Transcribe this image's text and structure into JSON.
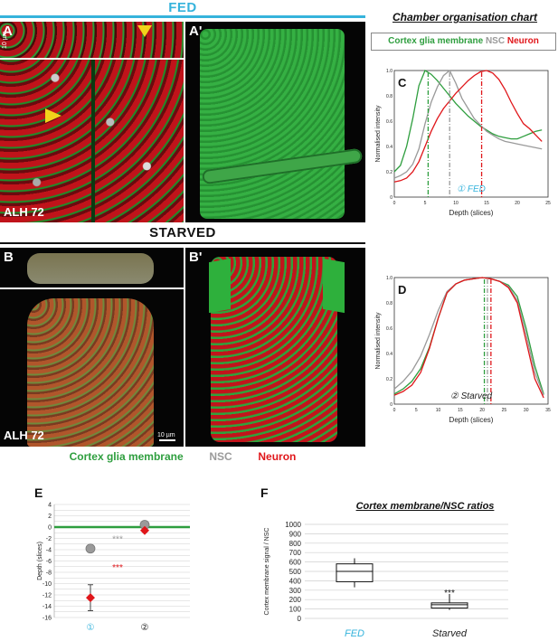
{
  "fed_header": "FED",
  "starved_header": "STARVED",
  "chamber_title": "Chamber organisation chart",
  "legend": {
    "cortex": "Cortex glia membrane",
    "nsc": "NSC",
    "neuron": "Neuron"
  },
  "colors": {
    "cortex": "#2e9e3e",
    "nsc": "#9a9a9a",
    "neuron": "#e0161a",
    "fed": "#35b3dc",
    "arrow": "#f2d21b"
  },
  "panels": {
    "A": "A",
    "A_prime": "A'",
    "B": "B",
    "B_prime": "B'",
    "C": "C",
    "D": "D",
    "E": "E",
    "F": "F",
    "alh_A": "ALH 72",
    "alh_B": "ALH 72",
    "scale_10": "10 µm",
    "scale_A_vert": "10 µm"
  },
  "chart_C": {
    "annotation_num": "①",
    "annotation_text": "FED",
    "ylabel": "Normalised intensity",
    "xlabel": "Depth (slices)",
    "xticks": [
      "0",
      "5",
      "10",
      "15",
      "20",
      "25"
    ],
    "yticks": [
      "0",
      "0.2",
      "0.4",
      "0.6",
      "0.8",
      "1.0"
    ]
  },
  "chart_D": {
    "annotation_num": "②",
    "annotation_text": "Starved",
    "ylabel": "Normalised intensity",
    "xlabel": "Depth (slices)",
    "xticks": [
      "0",
      "5",
      "10",
      "15",
      "20",
      "25",
      "30",
      "35"
    ],
    "yticks": [
      "0",
      "0.2",
      "0.4",
      "0.6",
      "0.8",
      "1.0"
    ]
  },
  "chart_E": {
    "ylabel": "Depth (slices)",
    "yticks": [
      "4",
      "2",
      "0",
      "-2",
      "-4",
      "-6",
      "-8",
      "-10",
      "-12",
      "-14",
      "-16"
    ],
    "xticks": [
      "①",
      "②"
    ],
    "sig_nsc": "***",
    "sig_neuron": "***"
  },
  "chart_F": {
    "title": "Cortex membrane/NSC ratios",
    "ylabel": "Cortex membrane signal / NSC",
    "yticks": [
      "1000",
      "900",
      "800",
      "700",
      "600",
      "500",
      "400",
      "300",
      "200",
      "100",
      "0"
    ],
    "categories": [
      "FED",
      "Starved"
    ],
    "sig": "***"
  },
  "chart_data": [
    {
      "type": "line",
      "panel": "C",
      "xlabel": "Depth (slices)",
      "ylabel": "Normalised intensity",
      "xlim": [
        0,
        25
      ],
      "ylim": [
        0,
        1
      ],
      "series": [
        {
          "name": "Cortex glia membrane",
          "color": "#2e9e3e",
          "x": [
            0,
            1,
            2,
            3,
            4,
            5,
            6,
            7,
            8,
            9,
            10,
            11,
            12,
            13,
            14,
            15,
            16,
            17,
            18,
            19,
            20,
            21,
            22,
            23,
            24
          ],
          "y": [
            0.2,
            0.25,
            0.4,
            0.62,
            0.88,
            1.0,
            0.97,
            0.92,
            0.86,
            0.8,
            0.74,
            0.69,
            0.64,
            0.6,
            0.56,
            0.53,
            0.5,
            0.48,
            0.47,
            0.46,
            0.46,
            0.48,
            0.5,
            0.52,
            0.53
          ]
        },
        {
          "name": "NSC",
          "color": "#9a9a9a",
          "x": [
            0,
            1,
            2,
            3,
            4,
            5,
            6,
            7,
            8,
            9,
            10,
            11,
            12,
            13,
            14,
            15,
            16,
            17,
            18,
            19,
            20,
            21,
            22,
            23,
            24
          ],
          "y": [
            0.15,
            0.17,
            0.2,
            0.26,
            0.38,
            0.58,
            0.75,
            0.87,
            0.96,
            1.0,
            0.9,
            0.78,
            0.7,
            0.62,
            0.57,
            0.52,
            0.49,
            0.46,
            0.44,
            0.43,
            0.42,
            0.41,
            0.4,
            0.39,
            0.38
          ]
        },
        {
          "name": "Neuron",
          "color": "#e0161a",
          "x": [
            0,
            1,
            2,
            3,
            4,
            5,
            6,
            7,
            8,
            9,
            10,
            11,
            12,
            13,
            14,
            15,
            16,
            17,
            18,
            19,
            20,
            21,
            22,
            23,
            24
          ],
          "y": [
            0.12,
            0.13,
            0.15,
            0.2,
            0.28,
            0.4,
            0.52,
            0.62,
            0.7,
            0.76,
            0.82,
            0.87,
            0.92,
            0.96,
            0.99,
            1.0,
            0.98,
            0.93,
            0.85,
            0.75,
            0.66,
            0.58,
            0.54,
            0.49,
            0.44
          ]
        }
      ],
      "vlines": [
        {
          "x": 5.5,
          "color": "#2e9e3e"
        },
        {
          "x": 9,
          "color": "#9a9a9a"
        },
        {
          "x": 14.2,
          "color": "#e0161a"
        }
      ]
    },
    {
      "type": "line",
      "panel": "D",
      "xlabel": "Depth (slices)",
      "ylabel": "Normalised intensity",
      "xlim": [
        0,
        35
      ],
      "ylim": [
        0,
        1
      ],
      "series": [
        {
          "name": "Cortex glia membrane",
          "color": "#2e9e3e",
          "x": [
            0,
            2,
            4,
            6,
            8,
            10,
            12,
            14,
            16,
            18,
            20,
            22,
            24,
            26,
            28,
            30,
            32,
            34
          ],
          "y": [
            0.08,
            0.12,
            0.18,
            0.28,
            0.45,
            0.68,
            0.88,
            0.95,
            0.98,
            0.99,
            1.0,
            0.99,
            0.97,
            0.94,
            0.85,
            0.6,
            0.3,
            0.08
          ]
        },
        {
          "name": "NSC",
          "color": "#9a9a9a",
          "x": [
            0,
            2,
            4,
            6,
            8,
            10,
            12,
            14,
            16,
            18,
            20,
            22,
            24,
            26,
            28,
            30,
            32,
            34
          ],
          "y": [
            0.12,
            0.18,
            0.26,
            0.38,
            0.55,
            0.74,
            0.89,
            0.95,
            0.98,
            0.99,
            1.0,
            0.99,
            0.97,
            0.93,
            0.82,
            0.55,
            0.25,
            0.07
          ]
        },
        {
          "name": "Neuron",
          "color": "#e0161a",
          "x": [
            0,
            2,
            4,
            6,
            8,
            10,
            12,
            14,
            16,
            18,
            20,
            22,
            24,
            26,
            28,
            30,
            32,
            34
          ],
          "y": [
            0.07,
            0.1,
            0.15,
            0.25,
            0.44,
            0.68,
            0.88,
            0.95,
            0.98,
            0.99,
            1.0,
            0.99,
            0.97,
            0.92,
            0.8,
            0.5,
            0.2,
            0.05
          ]
        }
      ],
      "vlines": [
        {
          "x": 20.5,
          "color": "#2e9e3e"
        },
        {
          "x": 21.2,
          "color": "#9a9a9a"
        },
        {
          "x": 22,
          "color": "#e0161a"
        }
      ]
    },
    {
      "type": "scatter",
      "panel": "E",
      "ylabel": "Depth (slices)",
      "ylim": [
        -16,
        4
      ],
      "categories": [
        "①",
        "②"
      ],
      "series": [
        {
          "name": "NSC",
          "color": "#9a9a9a",
          "values": [
            -3.8,
            0.4
          ],
          "err": [
            0,
            0
          ]
        },
        {
          "name": "Neuron",
          "color": "#e0161a",
          "values": [
            -12.5,
            -0.6
          ],
          "err": [
            2.3,
            0.3
          ]
        }
      ],
      "reference_line": {
        "y": 0,
        "color": "#2e9e3e"
      }
    },
    {
      "type": "box",
      "panel": "F",
      "title": "Cortex membrane/NSC ratios",
      "ylabel": "Cortex membrane signal / NSC",
      "ylim": [
        0,
        1000
      ],
      "categories": [
        "FED",
        "Starved"
      ],
      "boxes": [
        {
          "min": 330,
          "q1": 390,
          "median": 500,
          "q3": 580,
          "max": 640
        },
        {
          "min": 90,
          "q1": 110,
          "median": 145,
          "q3": 165,
          "max": 260
        }
      ]
    }
  ]
}
